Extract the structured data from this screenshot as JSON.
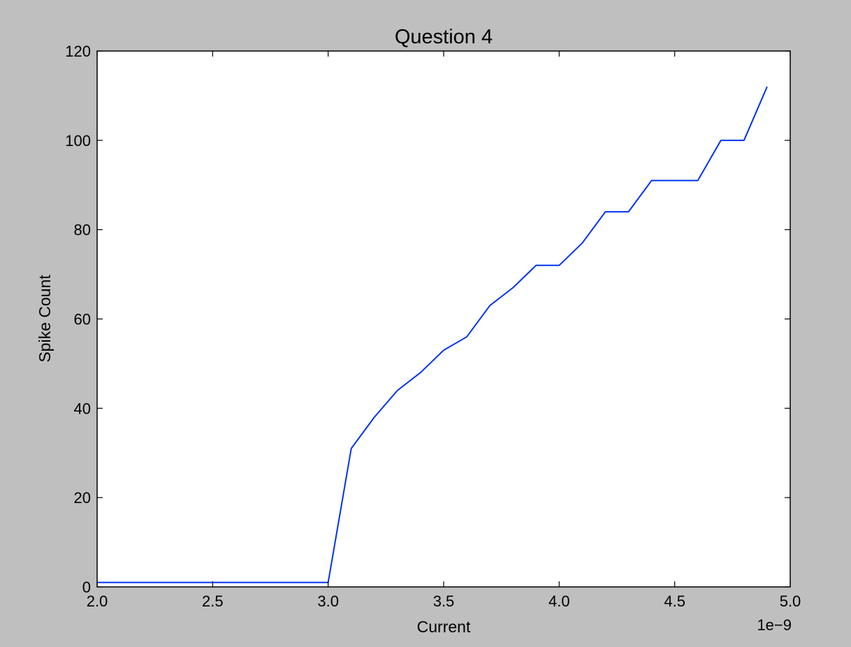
{
  "colors": {
    "figure_background": "#bfbfbf",
    "axes_background": "#ffffff",
    "axes_frame": "#000000",
    "line": "#0033ee"
  },
  "chart_data": {
    "type": "line",
    "title": "Question 4",
    "xlabel": "Current",
    "ylabel": "Spike Count",
    "x_offset_label": "1e−9",
    "xlim": [
      2.0,
      5.0
    ],
    "ylim": [
      0,
      120
    ],
    "x_ticks": [
      2.0,
      2.5,
      3.0,
      3.5,
      4.0,
      4.5,
      5.0
    ],
    "x_tick_labels": [
      "2.0",
      "2.5",
      "3.0",
      "3.5",
      "4.0",
      "4.5",
      "5.0"
    ],
    "y_ticks": [
      0,
      20,
      40,
      60,
      80,
      100,
      120
    ],
    "y_tick_labels": [
      "0",
      "20",
      "40",
      "60",
      "80",
      "100",
      "120"
    ],
    "grid": false,
    "legend": "none",
    "series": [
      {
        "x": [
          2.0,
          2.1,
          2.2,
          2.3,
          2.4,
          2.5,
          2.6,
          2.7,
          2.8,
          2.9,
          3.0,
          3.1,
          3.2,
          3.3,
          3.4,
          3.5,
          3.6,
          3.7,
          3.8,
          3.9,
          4.0,
          4.1,
          4.2,
          4.3,
          4.4,
          4.5,
          4.6,
          4.7,
          4.8,
          4.9
        ],
        "y": [
          1,
          1,
          1,
          1,
          1,
          1,
          1,
          1,
          1,
          1,
          1,
          31,
          38,
          44,
          48,
          53,
          56,
          63,
          67,
          72,
          72,
          77,
          84,
          84,
          91,
          91,
          91,
          100,
          100,
          112
        ]
      }
    ]
  }
}
